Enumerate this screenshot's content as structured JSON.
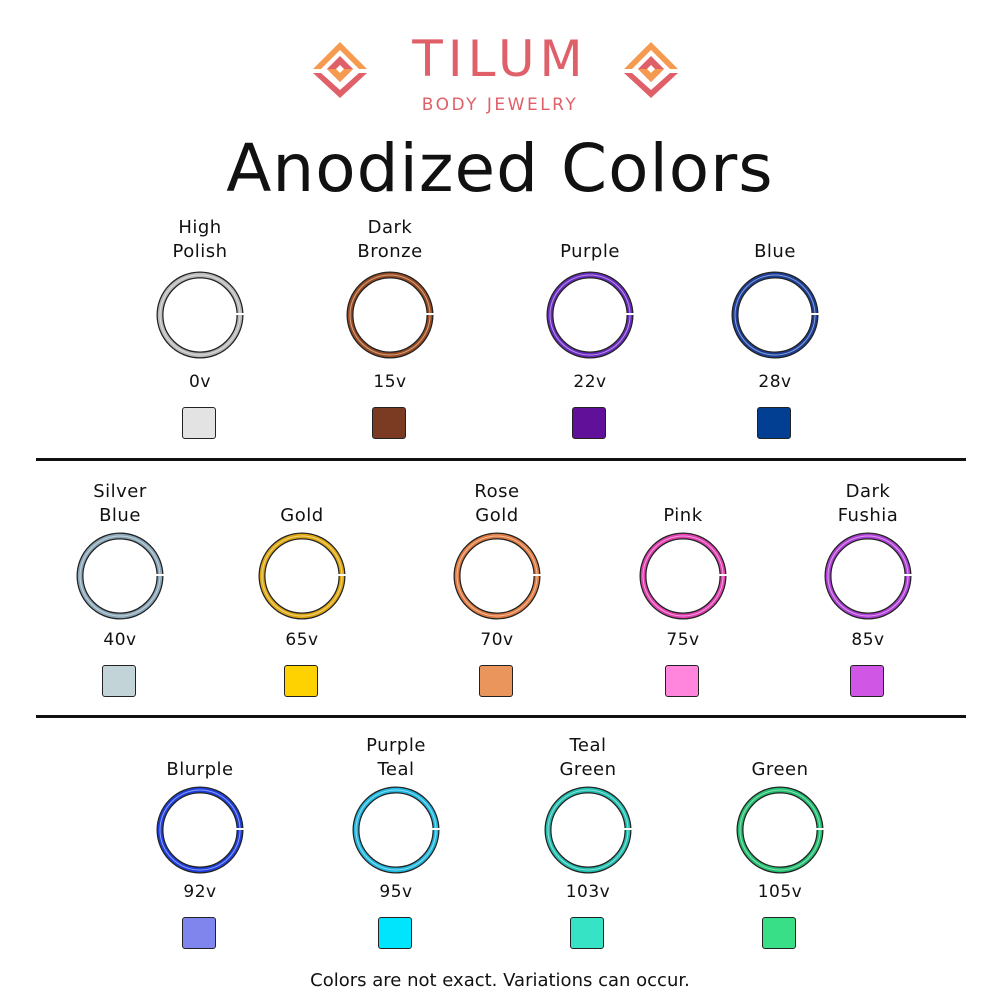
{
  "brand": {
    "name": "TILUM",
    "tagline": "BODY JEWELRY",
    "primary_color": "#e0606a",
    "accent_color": "#f59a4e"
  },
  "title": "Anodized Colors",
  "rows": [
    [
      {
        "name": [
          "High",
          "Polish"
        ],
        "voltage": "0v",
        "swatch": "#e3e3e3",
        "ring": "#b8b8b8"
      },
      {
        "name": [
          "Dark",
          "Bronze"
        ],
        "voltage": "15v",
        "swatch": "#7b3a22",
        "ring": "#9a4a1e"
      },
      {
        "name": [
          "Purple"
        ],
        "voltage": "22v",
        "swatch": "#611199",
        "ring": "#6a2bc0"
      },
      {
        "name": [
          "Blue"
        ],
        "voltage": "28v",
        "swatch": "#023f92",
        "ring": "#1b3f9a"
      }
    ],
    [
      {
        "name": [
          "Silver",
          "Blue"
        ],
        "voltage": "40v",
        "swatch": "#c2d4d8",
        "ring": "#8aa6b8"
      },
      {
        "name": [
          "Gold"
        ],
        "voltage": "65v",
        "swatch": "#fed101",
        "ring": "#e0a810"
      },
      {
        "name": [
          "Rose",
          "Gold"
        ],
        "voltage": "70v",
        "swatch": "#e9955b",
        "ring": "#e07a40"
      },
      {
        "name": [
          "Pink"
        ],
        "voltage": "75v",
        "swatch": "#ff85dd",
        "ring": "#e040b0"
      },
      {
        "name": [
          "Dark",
          "Fushia"
        ],
        "voltage": "85v",
        "swatch": "#d057e6",
        "ring": "#b040d8"
      }
    ],
    [
      {
        "name": [
          "Blurple"
        ],
        "voltage": "92v",
        "swatch": "#8085ee",
        "ring": "#1e3fe0"
      },
      {
        "name": [
          "Purple",
          "Teal"
        ],
        "voltage": "95v",
        "swatch": "#00e5fe",
        "ring": "#20b8e0"
      },
      {
        "name": [
          "Teal",
          "Green"
        ],
        "voltage": "103v",
        "swatch": "#37e3c5",
        "ring": "#20c0b0"
      },
      {
        "name": [
          "Green"
        ],
        "voltage": "105v",
        "swatch": "#38df86",
        "ring": "#20c070"
      }
    ]
  ],
  "note": "Colors are not exact. Variations can occur."
}
